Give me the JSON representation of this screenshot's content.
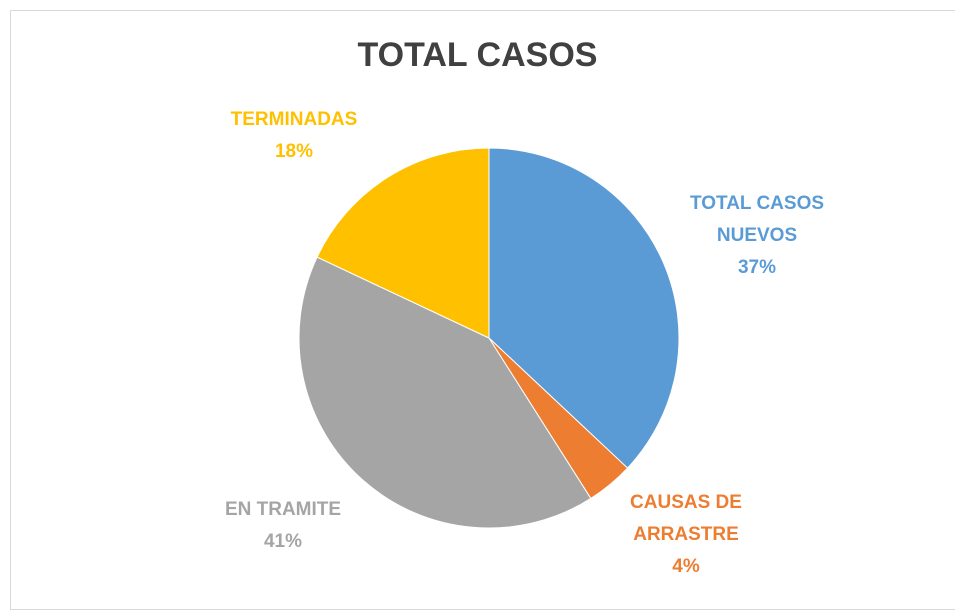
{
  "chart_data": {
    "type": "pie",
    "title": "TOTAL CASOS",
    "categories": [
      "TOTAL CASOS NUEVOS",
      "CAUSAS DE ARRASTRE",
      "EN TRAMITE",
      "TERMINADAS"
    ],
    "values": [
      37,
      4,
      41,
      18
    ],
    "value_labels": [
      "37%",
      "4%",
      "41%",
      "18%"
    ],
    "colors": [
      "#5b9bd5",
      "#ed7d31",
      "#a5a5a5",
      "#ffc000"
    ]
  }
}
